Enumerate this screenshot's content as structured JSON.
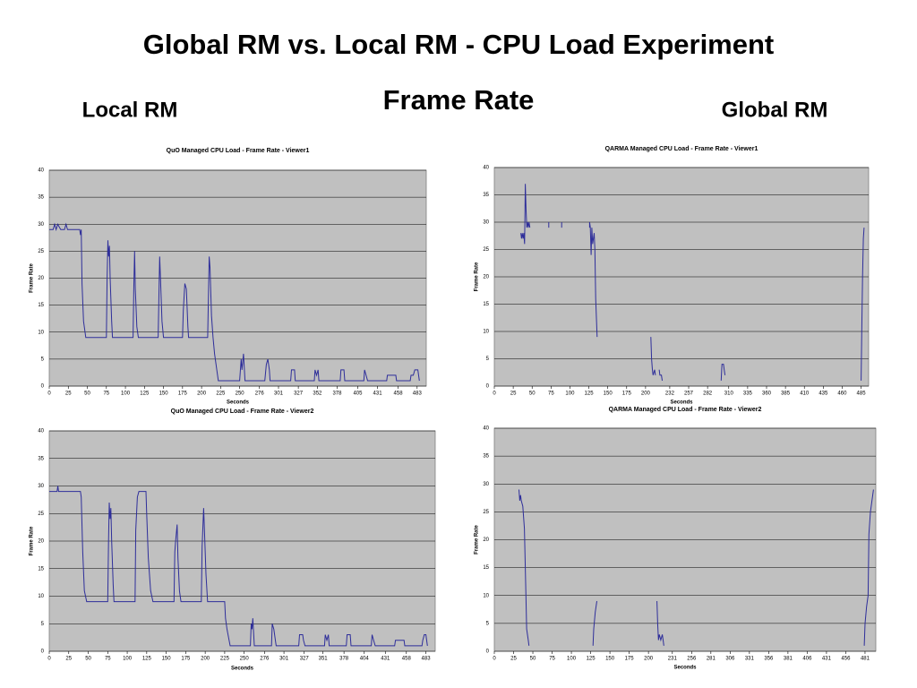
{
  "slide": {
    "title": "Global RM vs. Local RM - CPU Load Experiment",
    "subtitle": "Frame Rate",
    "left_label": "Local RM",
    "right_label": "Global RM"
  },
  "chart_data": [
    {
      "type": "line",
      "title": "QuO Managed CPU Load - Frame Rate - Viewer1",
      "x_label": "Seconds",
      "y_label": "Frame Rate",
      "color": "#2e2e9a",
      "background": "#c0c0c0",
      "grid": true,
      "xlim": [
        0,
        495
      ],
      "ylim": [
        0,
        40
      ],
      "yticks": [
        0,
        5,
        10,
        15,
        20,
        25,
        30,
        35,
        40
      ],
      "xticks": [
        0,
        25,
        50,
        75,
        100,
        125,
        150,
        175,
        200,
        225,
        250,
        276,
        301,
        327,
        352,
        378,
        405,
        431,
        458,
        483
      ],
      "x": [
        0,
        5,
        7,
        9,
        11,
        15,
        20,
        22,
        24,
        40,
        41,
        42,
        43,
        45,
        48,
        75,
        76,
        77,
        78,
        79,
        80,
        82,
        83,
        110,
        111,
        112,
        113,
        115,
        117,
        143,
        144,
        145,
        146,
        148,
        150,
        175,
        176,
        178,
        180,
        182,
        183,
        208,
        209,
        210,
        211,
        213,
        215,
        217,
        220,
        222,
        250,
        252,
        253,
        255,
        257,
        283,
        285,
        287,
        289,
        290,
        317,
        318,
        322,
        323,
        348,
        349,
        351,
        353,
        354,
        382,
        383,
        387,
        388,
        413,
        414,
        416,
        418,
        443,
        444,
        455,
        456,
        474,
        475,
        478,
        480,
        484,
        486
      ],
      "values": [
        29,
        29,
        30,
        29,
        30,
        29,
        29,
        30,
        29,
        29,
        28,
        29,
        19,
        12,
        9,
        9,
        20,
        27,
        24,
        26,
        20,
        12,
        9,
        9,
        18,
        25,
        18,
        11,
        9,
        9,
        17,
        24,
        20,
        12,
        9,
        9,
        14,
        19,
        18,
        11,
        9,
        9,
        17,
        24,
        22,
        13,
        9,
        6,
        3,
        1,
        1,
        5,
        3,
        6,
        1,
        1,
        4,
        5,
        3,
        1,
        1,
        3,
        3,
        1,
        1,
        3,
        2,
        3,
        1,
        1,
        3,
        3,
        1,
        1,
        3,
        2,
        1,
        1,
        2,
        2,
        1,
        1,
        2,
        2,
        3,
        3,
        1
      ]
    },
    {
      "type": "line",
      "title": "QARMA Managed CPU Load - Frame Rate - Viewer1",
      "x_label": "Seconds",
      "y_label": "Frame Rate",
      "color": "#2e2e9a",
      "background": "#c0c0c0",
      "grid": true,
      "xlim": [
        0,
        495
      ],
      "ylim": [
        0,
        40
      ],
      "yticks": [
        0,
        5,
        10,
        15,
        20,
        25,
        30,
        35,
        40
      ],
      "xticks": [
        0,
        25,
        50,
        75,
        100,
        125,
        150,
        175,
        200,
        232,
        257,
        282,
        310,
        335,
        360,
        385,
        410,
        435,
        460,
        485
      ],
      "x": [
        35,
        36,
        37,
        38,
        39,
        40,
        41,
        42,
        43,
        44,
        45,
        46,
        47,
        null,
        72,
        72,
        null,
        89,
        89,
        null,
        126,
        126,
        127,
        128,
        129,
        130,
        132,
        133,
        134,
        136,
        null,
        207,
        208,
        209,
        210,
        212,
        213,
        null,
        218,
        219,
        221,
        222,
        null,
        300,
        301,
        303,
        304,
        305,
        null,
        485,
        486,
        487,
        488,
        489
      ],
      "values": [
        28,
        27,
        28,
        27,
        28,
        26,
        37,
        32,
        29,
        30,
        29,
        30,
        29,
        null,
        29,
        30,
        null,
        29,
        30,
        null,
        29,
        30,
        29,
        24,
        29,
        26,
        28,
        25,
        16,
        9,
        null,
        9,
        5,
        3,
        2,
        3,
        2,
        null,
        3,
        2,
        2,
        1,
        null,
        1,
        4,
        4,
        3,
        2,
        null,
        1,
        11,
        20,
        27,
        29
      ]
    },
    {
      "type": "line",
      "title": "QuO Managed CPU Load - Frame Rate - Viewer2",
      "x_label": "Seconds",
      "y_label": "Frame Rate",
      "color": "#2e2e9a",
      "background": "#c0c0c0",
      "grid": true,
      "xlim": [
        0,
        495
      ],
      "ylim": [
        0,
        40
      ],
      "yticks": [
        0,
        5,
        10,
        15,
        20,
        25,
        30,
        35,
        40
      ],
      "xticks": [
        0,
        25,
        50,
        75,
        100,
        125,
        150,
        175,
        200,
        225,
        250,
        276,
        301,
        327,
        351,
        378,
        404,
        431,
        458,
        483
      ],
      "x": [
        0,
        10,
        11,
        12,
        40,
        41,
        43,
        45,
        48,
        75,
        76,
        77,
        78,
        79,
        80,
        82,
        83,
        110,
        111,
        113,
        115,
        124,
        125,
        127,
        130,
        133,
        160,
        161,
        162,
        164,
        165,
        167,
        169,
        195,
        196,
        198,
        199,
        201,
        203,
        225,
        226,
        228,
        232,
        258,
        259,
        260,
        261,
        263,
        285,
        286,
        288,
        290,
        291,
        320,
        321,
        325,
        326,
        328,
        353,
        354,
        356,
        358,
        359,
        381,
        382,
        386,
        387,
        413,
        414,
        416,
        418,
        443,
        444,
        455,
        456,
        478,
        479,
        481,
        483,
        485
      ],
      "values": [
        29,
        29,
        30,
        29,
        29,
        28,
        18,
        11,
        9,
        9,
        20,
        27,
        24,
        26,
        20,
        12,
        9,
        9,
        22,
        28,
        29,
        29,
        25,
        17,
        11,
        9,
        9,
        18,
        20,
        23,
        17,
        11,
        9,
        9,
        19,
        26,
        22,
        14,
        9,
        9,
        6,
        4,
        1,
        1,
        5,
        4,
        6,
        1,
        1,
        5,
        4,
        2,
        1,
        1,
        3,
        3,
        2,
        1,
        1,
        3,
        2,
        3,
        1,
        1,
        3,
        3,
        1,
        1,
        3,
        2,
        1,
        1,
        2,
        2,
        1,
        1,
        2,
        3,
        3,
        1
      ]
    },
    {
      "type": "line",
      "title": "QARMA Managed CPU Load - Frame Rate - Viewer2",
      "x_label": "Seconds",
      "y_label": "Frame Rate",
      "color": "#2e2e9a",
      "background": "#c0c0c0",
      "grid": true,
      "xlim": [
        0,
        495
      ],
      "ylim": [
        0,
        40
      ],
      "yticks": [
        0,
        5,
        10,
        15,
        20,
        25,
        30,
        35,
        40
      ],
      "xticks": [
        0,
        25,
        50,
        75,
        100,
        125,
        150,
        175,
        200,
        231,
        256,
        281,
        306,
        331,
        356,
        381,
        406,
        431,
        456,
        481
      ],
      "x": [
        32,
        33,
        34,
        35,
        37,
        39,
        41,
        42,
        44,
        45,
        null,
        128,
        129,
        131,
        133,
        null,
        211,
        212,
        213,
        214,
        216,
        218,
        219,
        220,
        null,
        480,
        481,
        483,
        485,
        486,
        488,
        490,
        492
      ],
      "values": [
        29,
        27,
        28,
        27,
        26,
        22,
        10,
        4,
        2,
        1,
        null,
        1,
        4,
        7,
        9,
        null,
        9,
        5,
        2,
        3,
        2,
        3,
        2,
        1,
        null,
        1,
        5,
        8,
        10,
        21,
        25,
        27,
        29
      ]
    }
  ]
}
